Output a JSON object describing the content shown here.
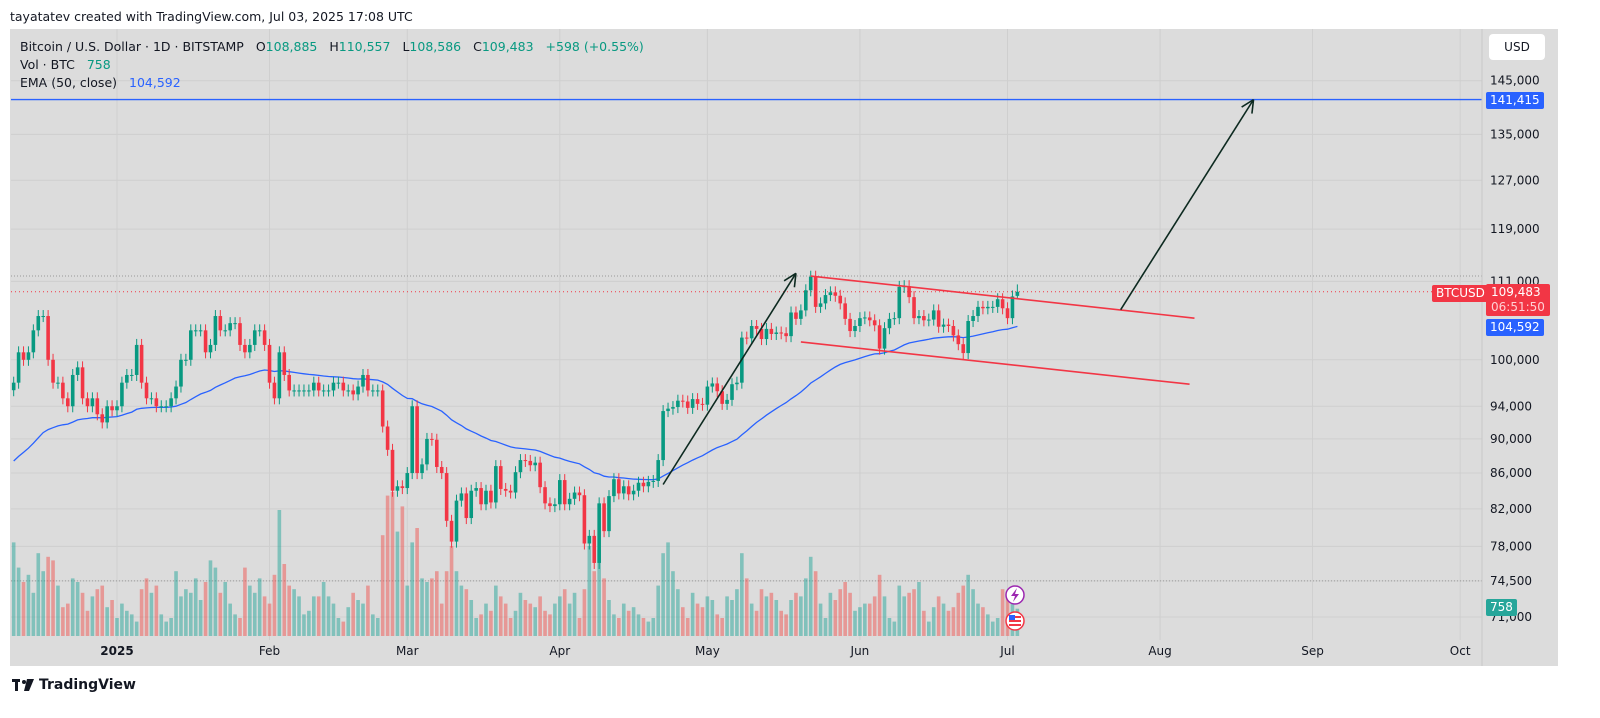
{
  "credit": "tayatatev created with TradingView.com, Jul 03, 2025 17:08 UTC",
  "legend": {
    "symbol": "Bitcoin / U.S. Dollar · 1D · BITSTAMP",
    "o_label": "O",
    "o": "108,885",
    "h_label": "H",
    "h": "110,557",
    "l_label": "L",
    "l": "108,586",
    "c_label": "C",
    "c": "109,483",
    "change": "+598 (+0.55%)",
    "vol_label": "Vol · BTC",
    "vol": "758",
    "ema_label": "EMA (50, close)",
    "ema": "104,592"
  },
  "currency_button": "USD",
  "tags": {
    "target": "141,415",
    "symbol": "BTCUSD",
    "price": "109,483",
    "countdown": "06:51:50",
    "ema": "104,592",
    "volume": "758"
  },
  "brand": "TradingView",
  "colors": {
    "up": "#089981",
    "down": "#f23645",
    "ema": "#2962ff",
    "target_line": "#2962ff",
    "channel": "#f23645",
    "arrow": "#0d2a20"
  },
  "chart_data": {
    "type": "candlestick",
    "title": "Bitcoin / U.S. Dollar · 1D · BITSTAMP",
    "y_scale": "log",
    "ylim": [
      71000,
      150000
    ],
    "y_ticks": [
      "145,000",
      "135,000",
      "127,000",
      "119,000",
      "111,000",
      "100,000",
      "94,000",
      "90,000",
      "86,000",
      "82,000",
      "78,000",
      "74,500",
      "71,000"
    ],
    "y_tick_values": [
      145000,
      135000,
      127000,
      119000,
      111000,
      100000,
      94000,
      90000,
      86000,
      82000,
      78000,
      74500,
      71000
    ],
    "x_ticks": [
      "2025",
      "Feb",
      "Mar",
      "Apr",
      "May",
      "Jun",
      "Jul",
      "Aug",
      "Sep",
      "Oct"
    ],
    "x_tick_dates": [
      "2025-01-01",
      "2025-02-01",
      "2025-03-01",
      "2025-04-01",
      "2025-05-01",
      "2025-06-01",
      "2025-07-01",
      "2025-08-01",
      "2025-09-01",
      "2025-10-01"
    ],
    "x_range": [
      "2024-12-10",
      "2025-10-25"
    ],
    "start_date": "2024-12-11",
    "last_candle": {
      "open": 108885,
      "high": 110557,
      "low": 108586,
      "close": 109483
    },
    "closes": [
      97000,
      101000,
      100000,
      101000,
      104000,
      106000,
      106000,
      100000,
      97000,
      97000,
      95000,
      94000,
      98000,
      99000,
      95000,
      94000,
      95000,
      93000,
      92000,
      94000,
      93500,
      94000,
      97000,
      98000,
      98000,
      102000,
      97000,
      95000,
      95000,
      94000,
      94000,
      94000,
      95000,
      96500,
      100000,
      100000,
      104000,
      104000,
      104000,
      101000,
      102000,
      106000,
      104000,
      104000,
      105000,
      105000,
      102000,
      101000,
      102000,
      104000,
      104000,
      102000,
      97000,
      95000,
      101000,
      98000,
      96000,
      96000,
      96000,
      96000,
      96000,
      97000,
      96000,
      96000,
      96000,
      97000,
      97000,
      96000,
      96000,
      95500,
      96500,
      98000,
      96000,
      96000,
      96000,
      91500,
      88700,
      84000,
      84500,
      84300,
      86000,
      94000,
      86000,
      87000,
      90000,
      89900,
      86700,
      86000,
      80700,
      78500,
      82900,
      83700,
      81000,
      84000,
      84300,
      82500,
      84000,
      82700,
      86800,
      84200,
      84000,
      83800,
      86100,
      87500,
      87400,
      86900,
      87200,
      84400,
      82600,
      82300,
      82500,
      85200,
      82500,
      83100,
      83800,
      83500,
      78300,
      79100,
      76300,
      82600,
      79600,
      83400,
      85300,
      83700,
      84500,
      83600,
      84000,
      84900,
      84500,
      85000,
      85100,
      87500,
      93400,
      93700,
      93900,
      94700,
      94600,
      93800,
      94900,
      94300,
      94200,
      96500,
      96900,
      95900,
      94300,
      94800,
      96800,
      97000,
      103000,
      102900,
      104600,
      104200,
      102800,
      104200,
      103500,
      103700,
      103600,
      103200,
      106500,
      105600,
      106800,
      109700,
      111700,
      107300,
      107800,
      109000,
      109400,
      108900,
      107800,
      105600,
      103900,
      104600,
      105700,
      105800,
      105400,
      104700,
      101500,
      104300,
      105600,
      105700,
      110200,
      110300,
      108700,
      105700,
      106000,
      105400,
      105500,
      106800,
      104500,
      104800,
      104600,
      103300,
      102100,
      100900,
      105300,
      106000,
      107300,
      107100,
      107300,
      107300,
      108400,
      107100,
      105700,
      108800,
      109483
    ],
    "volumes": [
      2600,
      1900,
      1500,
      1700,
      1200,
      2300,
      1800,
      2200,
      2100,
      1400,
      800,
      900,
      1600,
      1500,
      1200,
      700,
      1100,
      1300,
      1400,
      800,
      1000,
      500,
      900,
      700,
      600,
      400,
      1300,
      1600,
      1200,
      1400,
      600,
      400,
      500,
      1800,
      1100,
      1300,
      1200,
      1600,
      1000,
      1500,
      2100,
      1900,
      1200,
      1500,
      900,
      600,
      500,
      1900,
      1400,
      1200,
      1600,
      1100,
      900,
      1700,
      3500,
      2000,
      1400,
      1300,
      1100,
      600,
      700,
      1100,
      1100,
      1500,
      1100,
      900,
      500,
      400,
      800,
      1200,
      1000,
      900,
      1400,
      600,
      500,
      2800,
      3900,
      4000,
      2900,
      3600,
      1400,
      2600,
      3000,
      1600,
      1500,
      1600,
      1800,
      900,
      1800,
      2500,
      1800,
      1400,
      1300,
      1000,
      500,
      600,
      900,
      700,
      1400,
      1100,
      900,
      500,
      700,
      1200,
      1000,
      900,
      800,
      1100,
      700,
      600,
      900,
      1100,
      1300,
      900,
      1200,
      500,
      1300,
      2500,
      1800,
      2400,
      1600,
      1000,
      600,
      500,
      900,
      700,
      800,
      600,
      500,
      400,
      500,
      1400,
      2300,
      2600,
      1800,
      1300,
      800,
      500,
      1200,
      900,
      800,
      1100,
      1000,
      600,
      500,
      1100,
      1000,
      1300,
      2300,
      1600,
      900,
      700,
      1300,
      1100,
      1200,
      1000,
      700,
      600,
      1000,
      1200,
      1100,
      1600,
      2200,
      1800,
      900,
      500,
      1200,
      1000,
      1300,
      1500,
      1200,
      700,
      800,
      900,
      900,
      1100,
      1700,
      1100,
      500,
      400,
      1400,
      1100,
      1200,
      1300,
      1500,
      700,
      400,
      800,
      1100,
      900,
      700,
      800,
      1200,
      1400,
      1700,
      1300,
      900,
      800,
      600,
      400,
      500,
      1300,
      1100,
      900,
      758
    ],
    "ema": {
      "period": 50,
      "last": 104592
    },
    "drawings": {
      "target_level": 141415,
      "arrows": [
        {
          "from": [
            "2025-04-22",
            84700
          ],
          "to": [
            "2025-05-19",
            112200
          ]
        },
        {
          "from": [
            "2025-07-24",
            106900
          ],
          "to": [
            "2025-08-20",
            141400
          ]
        }
      ],
      "channel": [
        {
          "from": [
            "2025-05-22",
            111800
          ],
          "to": [
            "2025-08-08",
            105700
          ]
        },
        {
          "from": [
            "2025-05-20",
            102400
          ],
          "to": [
            "2025-08-07",
            96800
          ]
        }
      ]
    }
  }
}
